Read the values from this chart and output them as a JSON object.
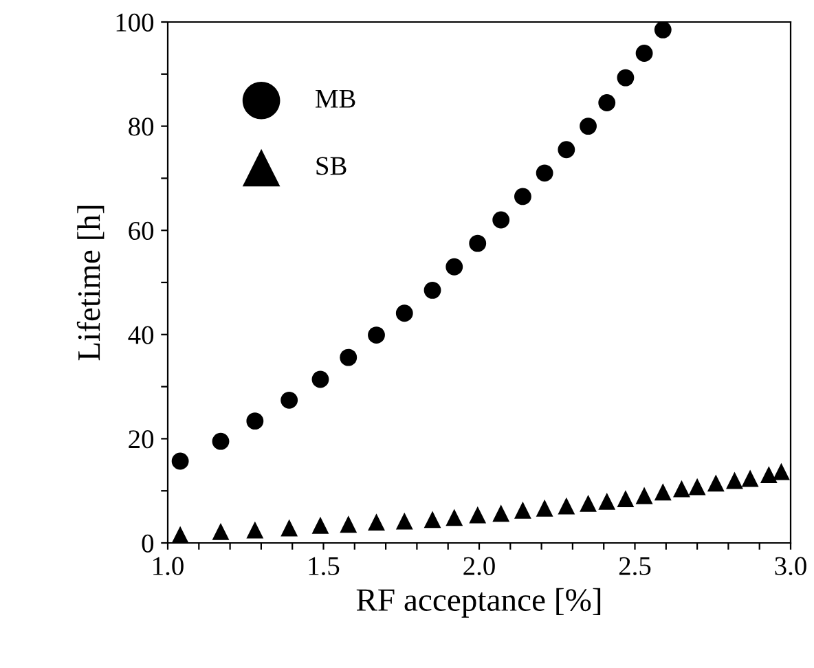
{
  "chart_data": {
    "type": "scatter",
    "xlabel": "RF acceptance [%]",
    "ylabel": "Lifetime [h]",
    "x": [
      1.04,
      1.17,
      1.28,
      1.39,
      1.49,
      1.58,
      1.67,
      1.76,
      1.85,
      1.92,
      1.995,
      2.07,
      2.14,
      2.21,
      2.28,
      2.35,
      2.41,
      2.47,
      2.53,
      2.59,
      2.65,
      2.7,
      2.76,
      2.82,
      2.87,
      2.93,
      2.97
    ],
    "series": [
      {
        "name": "MB",
        "color": "#000000",
        "marker": "circle",
        "values": [
          15.7,
          19.5,
          23.4,
          27.4,
          31.4,
          35.6,
          39.9,
          44.1,
          48.5,
          53,
          57.5,
          62,
          66.5,
          71,
          75.5,
          80,
          84.5,
          89.3,
          94,
          98.5,
          null,
          null,
          null,
          null,
          null,
          null,
          null
        ]
      },
      {
        "name": "SB",
        "color": "#000000",
        "marker": "triangle",
        "values": [
          1.6,
          2.2,
          2.5,
          2.9,
          3.4,
          3.6,
          4.0,
          4.2,
          4.5,
          4.9,
          5.4,
          5.7,
          6.3,
          6.7,
          7.1,
          7.6,
          8.0,
          8.5,
          9.1,
          9.8,
          10.4,
          10.8,
          11.5,
          12.0,
          12.4,
          13.1,
          13.7
        ]
      }
    ],
    "xlim": [
      1.0,
      3.0
    ],
    "ylim": [
      0,
      100
    ],
    "xticks": [
      {
        "value": 1.0,
        "label": "1.0"
      },
      {
        "value": 1.1,
        "label": null
      },
      {
        "value": 1.2,
        "label": null
      },
      {
        "value": 1.3,
        "label": null
      },
      {
        "value": 1.4,
        "label": null
      },
      {
        "value": 1.5,
        "label": "1.5"
      },
      {
        "value": 1.6,
        "label": null
      },
      {
        "value": 1.7,
        "label": null
      },
      {
        "value": 1.8,
        "label": null
      },
      {
        "value": 1.9,
        "label": null
      },
      {
        "value": 2.0,
        "label": "2.0"
      },
      {
        "value": 2.1,
        "label": null
      },
      {
        "value": 2.2,
        "label": null
      },
      {
        "value": 2.3,
        "label": null
      },
      {
        "value": 2.4,
        "label": null
      },
      {
        "value": 2.5,
        "label": "2.5"
      },
      {
        "value": 2.6,
        "label": null
      },
      {
        "value": 2.7,
        "label": null
      },
      {
        "value": 2.8,
        "label": null
      },
      {
        "value": 2.9,
        "label": null
      },
      {
        "value": 3.0,
        "label": "3.0"
      }
    ],
    "yticks": [
      0,
      {
        "value": 10,
        "label": null
      },
      20,
      {
        "value": 30,
        "label": null
      },
      40,
      {
        "value": 50,
        "label": null
      },
      60,
      {
        "value": 70,
        "label": null
      },
      80,
      {
        "value": 90,
        "label": null
      },
      100
    ],
    "grid": false,
    "legend": "top left"
  }
}
